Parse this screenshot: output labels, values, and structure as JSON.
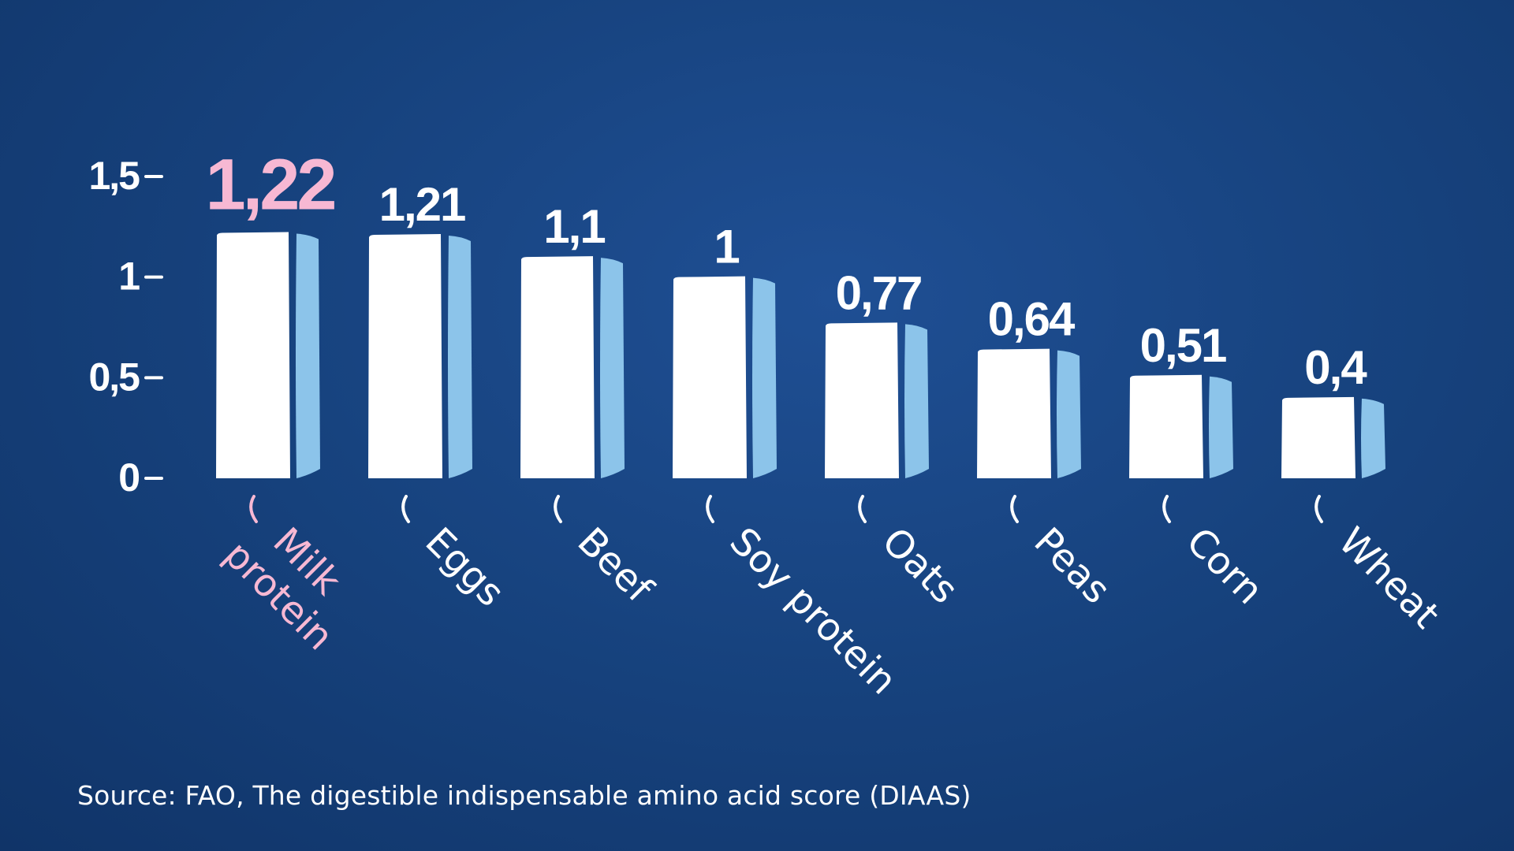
{
  "chart_data": {
    "type": "bar",
    "categories": [
      "Milk\nprotein",
      "Eggs",
      "Beef",
      "Soy protein",
      "Oats",
      "Peas",
      "Corn",
      "Wheat"
    ],
    "values": [
      1.22,
      1.21,
      1.1,
      1,
      0.77,
      0.64,
      0.51,
      0.4
    ],
    "value_labels": [
      "1,22",
      "1,21",
      "1,1",
      "1",
      "0,77",
      "0,64",
      "0,51",
      "0,4"
    ],
    "highlight_index": 0,
    "y_ticks": [
      0,
      0.5,
      1,
      1.5
    ],
    "y_tick_labels": [
      "0",
      "0,5",
      "1",
      "1,5"
    ],
    "ylim": [
      0,
      1.5
    ],
    "title": "",
    "xlabel": "",
    "ylabel": "",
    "grid": false,
    "colors": {
      "background": "#17437f",
      "bar_front": "#ffffff",
      "bar_side": "#8cc4ea",
      "highlight": "#f7b8d3",
      "text": "#ffffff"
    }
  },
  "source": "Source: FAO, The digestible indispensable amino acid score (DIAAS)"
}
